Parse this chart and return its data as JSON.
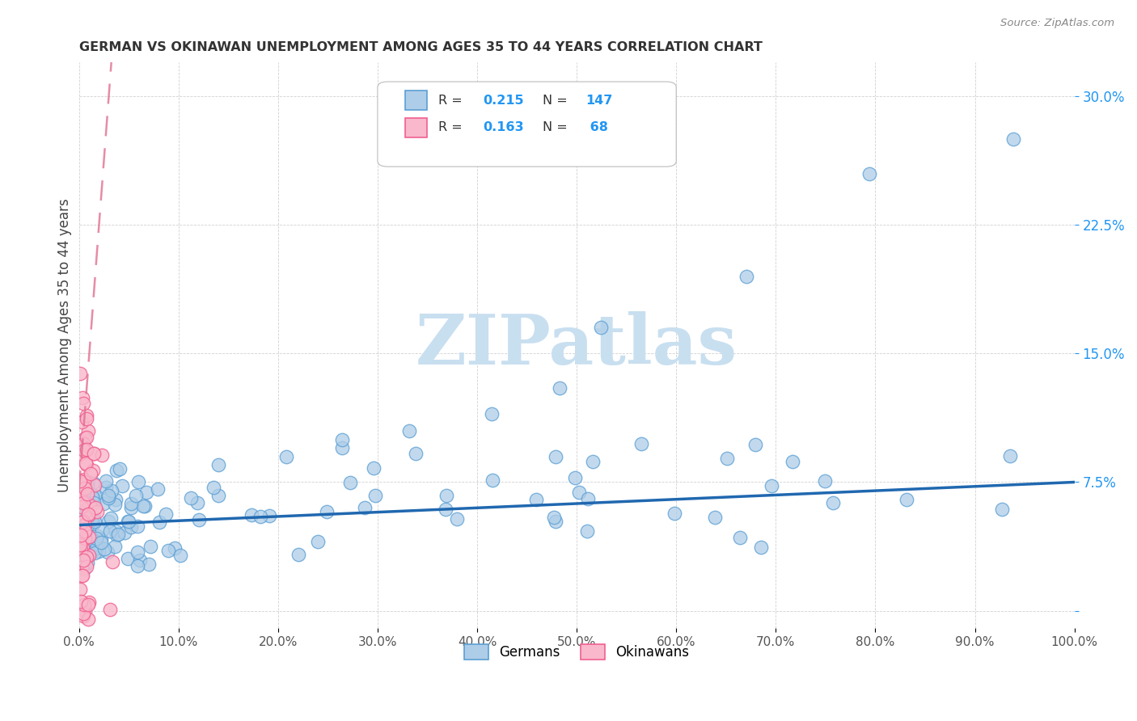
{
  "title": "GERMAN VS OKINAWAN UNEMPLOYMENT AMONG AGES 35 TO 44 YEARS CORRELATION CHART",
  "source": "Source: ZipAtlas.com",
  "ylabel": "Unemployment Among Ages 35 to 44 years",
  "xlim": [
    0.0,
    1.0
  ],
  "ylim": [
    -0.01,
    0.32
  ],
  "german_color": "#aecde8",
  "german_edge_color": "#5b9fd4",
  "okinawan_color": "#f9b8cb",
  "okinawan_edge_color": "#f06090",
  "german_R": 0.215,
  "german_N": 147,
  "okinawan_R": 0.163,
  "okinawan_N": 68,
  "regression_line_color_german": "#2068b0",
  "regression_line_color_okinawan": "#e07090",
  "watermark_color": "#c8dff0",
  "legend_color_blue": "#2196F3",
  "ytick_color": "#2196F3",
  "xtick_color": "#555555"
}
